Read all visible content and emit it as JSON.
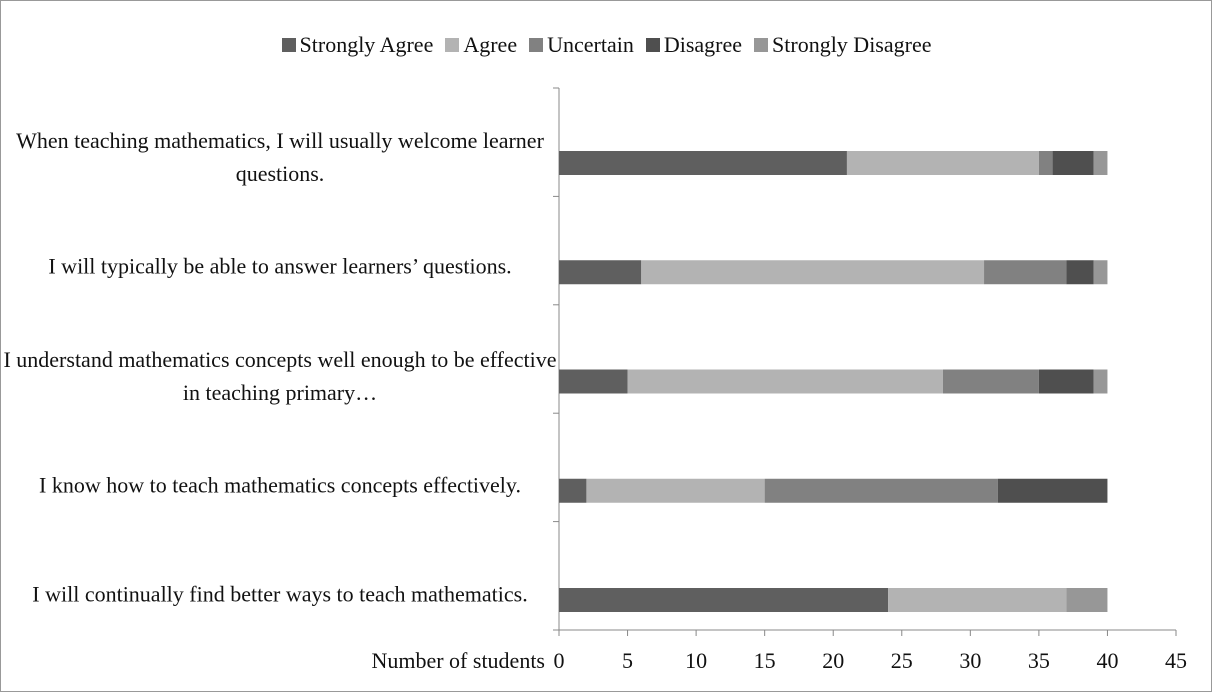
{
  "chart_data": {
    "type": "stacked-bar-horizontal",
    "categories": [
      "When teaching mathematics, I will usually welcome learner questions.",
      "I will typically be able to answer learners’ questions.",
      "I understand mathematics concepts well enough to be effective in teaching primary…",
      "I know how to teach mathematics concepts effectively.",
      "I will continually find better ways to teach mathematics."
    ],
    "series": [
      {
        "name": "Strongly Agree",
        "color": "#5f5f5f",
        "values": [
          21,
          6,
          5,
          2,
          24
        ]
      },
      {
        "name": "Agree",
        "color": "#b3b3b3",
        "values": [
          14,
          25,
          23,
          13,
          13
        ]
      },
      {
        "name": "Uncertain",
        "color": "#818181",
        "values": [
          1,
          6,
          7,
          17,
          0
        ]
      },
      {
        "name": "Disagree",
        "color": "#4f4f4f",
        "values": [
          3,
          2,
          4,
          8,
          0
        ]
      },
      {
        "name": "Strongly Disagree",
        "color": "#979797",
        "values": [
          1,
          1,
          1,
          0,
          3
        ]
      }
    ],
    "xlabel": "Number of students",
    "xlim": [
      0,
      45
    ],
    "xticks": [
      0,
      5,
      10,
      15,
      20,
      25,
      30,
      35,
      40,
      45
    ],
    "grid": false,
    "legend": "top"
  }
}
